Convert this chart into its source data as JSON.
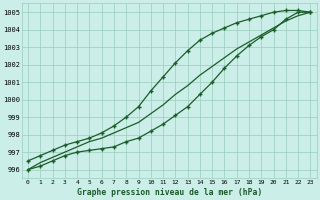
{
  "xlabel": "Graphe pression niveau de la mer (hPa)",
  "background_color": "#cceee8",
  "grid_color": "#99ccbb",
  "line_color": "#1a5c2a",
  "x_values": [
    0,
    1,
    2,
    3,
    4,
    5,
    6,
    7,
    8,
    9,
    10,
    11,
    12,
    13,
    14,
    15,
    16,
    17,
    18,
    19,
    20,
    21,
    22,
    23
  ],
  "line_top": [
    996.5,
    996.8,
    997.1,
    997.4,
    997.6,
    997.8,
    998.1,
    998.5,
    999.0,
    999.6,
    1000.5,
    1001.3,
    1002.1,
    1002.8,
    1003.4,
    1003.8,
    1004.1,
    1004.4,
    1004.6,
    1004.8,
    1005.0,
    1005.1,
    1005.1,
    1005.0
  ],
  "line_mid": [
    996.0,
    996.4,
    996.7,
    997.0,
    997.3,
    997.6,
    997.8,
    998.1,
    998.4,
    998.7,
    999.2,
    999.7,
    1000.3,
    1000.8,
    1001.4,
    1001.9,
    1002.4,
    1002.9,
    1003.3,
    1003.7,
    1004.1,
    1004.5,
    1004.8,
    1005.0
  ],
  "line_bot": [
    996.0,
    996.2,
    996.5,
    996.8,
    997.0,
    997.1,
    997.2,
    997.3,
    997.6,
    997.8,
    998.2,
    998.6,
    999.1,
    999.6,
    1000.3,
    1001.0,
    1001.8,
    1002.5,
    1003.1,
    1003.6,
    1004.0,
    1004.6,
    1005.0,
    1005.0
  ],
  "ylim": [
    995.5,
    1005.5
  ],
  "xlim": [
    -0.5,
    23.5
  ],
  "yticks": [
    996,
    997,
    998,
    999,
    1000,
    1001,
    1002,
    1003,
    1004,
    1005
  ],
  "xticks": [
    0,
    1,
    2,
    3,
    4,
    5,
    6,
    7,
    8,
    9,
    10,
    11,
    12,
    13,
    14,
    15,
    16,
    17,
    18,
    19,
    20,
    21,
    22,
    23
  ]
}
